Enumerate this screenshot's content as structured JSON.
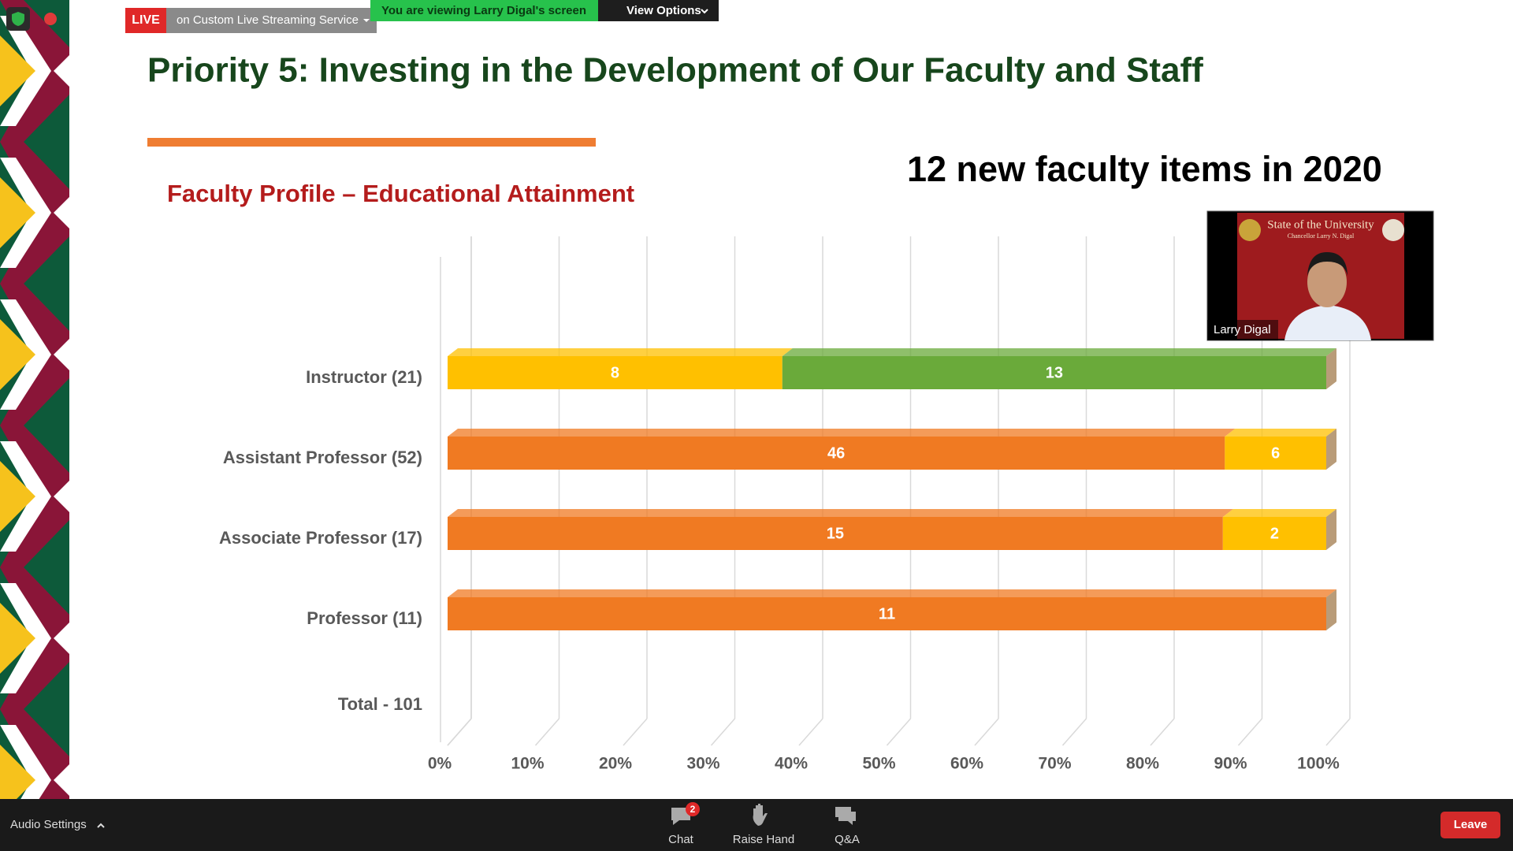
{
  "top_bar": {
    "live": "LIVE",
    "stream": "on Custom Live Streaming Service",
    "viewing": "You are viewing Larry Digal's screen",
    "view_options": "View Options"
  },
  "slide": {
    "title": "Priority 5: Investing in the Development of Our Faculty and Staff",
    "subtitle": "12 new faculty items in 2020"
  },
  "chart_data": {
    "type": "bar",
    "orientation": "horizontal",
    "stacked": "percent",
    "title": "Faculty Profile – Educational Attainment",
    "categories": [
      "Instructor (21)",
      "Assistant Professor (52)",
      "Associate Professor (17)",
      "Professor (11)",
      "Total - 101"
    ],
    "series": [
      {
        "color": "#f07a22",
        "values": [
          null,
          46,
          15,
          11,
          null
        ]
      },
      {
        "color": "#ffc000",
        "values": [
          8,
          6,
          2,
          null,
          null
        ]
      },
      {
        "color": "#6aaa3a",
        "values": [
          13,
          null,
          null,
          null,
          null
        ]
      }
    ],
    "xlim": [
      0,
      100
    ],
    "xticks": [
      {
        "value": 0,
        "label": "0%"
      },
      {
        "value": 10,
        "label": "10%"
      },
      {
        "value": 20,
        "label": "20%"
      },
      {
        "value": 30,
        "label": "30%"
      },
      {
        "value": 40,
        "label": "40%"
      },
      {
        "value": 50,
        "label": "50%"
      },
      {
        "value": 60,
        "label": "60%"
      },
      {
        "value": 70,
        "label": "70%"
      },
      {
        "value": 80,
        "label": "80%"
      },
      {
        "value": 90,
        "label": "90%"
      },
      {
        "value": 100,
        "label": "100%"
      }
    ],
    "grid": true
  },
  "video": {
    "banner": "State of the University",
    "subbanner": "Chancellor Larry N. Digal",
    "name": "Larry Digal"
  },
  "bottom_bar": {
    "audio": "Audio Settings",
    "chat": "Chat",
    "chat_badge": 2,
    "raise_hand": "Raise Hand",
    "qa": "Q&A",
    "leave": "Leave"
  }
}
